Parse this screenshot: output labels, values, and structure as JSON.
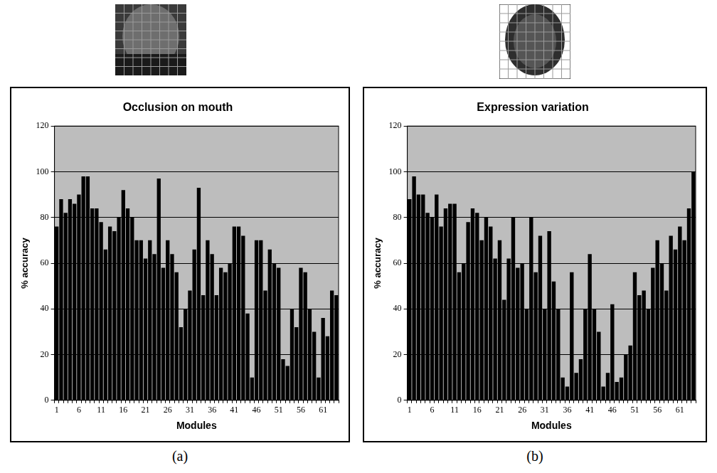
{
  "chart_data": [
    {
      "type": "bar",
      "title": "Occlusion on mouth",
      "xlabel": "Modules",
      "ylabel": "% accuracy",
      "caption": "(a)",
      "categories": [
        "1",
        null,
        null,
        null,
        null,
        "6",
        null,
        null,
        null,
        null,
        "11",
        null,
        null,
        null,
        null,
        "16",
        null,
        null,
        null,
        null,
        "21",
        null,
        null,
        null,
        null,
        "26",
        null,
        null,
        null,
        null,
        "31",
        null,
        null,
        null,
        null,
        "36",
        null,
        null,
        null,
        null,
        "41",
        null,
        null,
        null,
        null,
        "46",
        null,
        null,
        null,
        null,
        "51",
        null,
        null,
        null,
        null,
        "56",
        null,
        null,
        null,
        null,
        "61",
        null,
        null,
        null
      ],
      "values": [
        76,
        88,
        82,
        88,
        86,
        90,
        98,
        98,
        84,
        84,
        78,
        66,
        76,
        74,
        80,
        92,
        84,
        80,
        70,
        70,
        62,
        70,
        64,
        97,
        58,
        70,
        64,
        56,
        32,
        40,
        48,
        66,
        93,
        46,
        70,
        64,
        46,
        58,
        56,
        60,
        76,
        76,
        72,
        38,
        10,
        70,
        70,
        48,
        66,
        60,
        58,
        18,
        15,
        40,
        32,
        58,
        56,
        40,
        30,
        10,
        36,
        28,
        48,
        46
      ],
      "color": "#000000",
      "ylim": [
        0,
        120
      ],
      "yticks": [
        0,
        20,
        40,
        60,
        80,
        100,
        120
      ],
      "grid": true
    },
    {
      "type": "bar",
      "title": "Expression variation",
      "xlabel": "Modules",
      "ylabel": "% accuracy",
      "caption": "(b)",
      "categories": [
        "1",
        null,
        null,
        null,
        null,
        "6",
        null,
        null,
        null,
        null,
        "11",
        null,
        null,
        null,
        null,
        "16",
        null,
        null,
        null,
        null,
        "21",
        null,
        null,
        null,
        null,
        "26",
        null,
        null,
        null,
        null,
        "31",
        null,
        null,
        null,
        null,
        "36",
        null,
        null,
        null,
        null,
        "41",
        null,
        null,
        null,
        null,
        "46",
        null,
        null,
        null,
        null,
        "51",
        null,
        null,
        null,
        null,
        "56",
        null,
        null,
        null,
        null,
        "61",
        null,
        null,
        null
      ],
      "values": [
        88,
        98,
        90,
        90,
        82,
        80,
        90,
        76,
        84,
        86,
        86,
        56,
        60,
        78,
        84,
        82,
        70,
        80,
        76,
        62,
        70,
        44,
        62,
        80,
        58,
        60,
        40,
        80,
        56,
        72,
        40,
        74,
        52,
        40,
        10,
        6,
        56,
        12,
        18,
        40,
        64,
        40,
        30,
        6,
        12,
        42,
        8,
        10,
        20,
        24,
        56,
        46,
        48,
        40,
        58,
        70,
        60,
        48,
        72,
        66,
        76,
        70,
        84,
        100
      ],
      "color": "#000000",
      "ylim": [
        0,
        120
      ],
      "yticks": [
        0,
        20,
        40,
        60,
        80,
        100,
        120
      ],
      "grid": true
    }
  ]
}
